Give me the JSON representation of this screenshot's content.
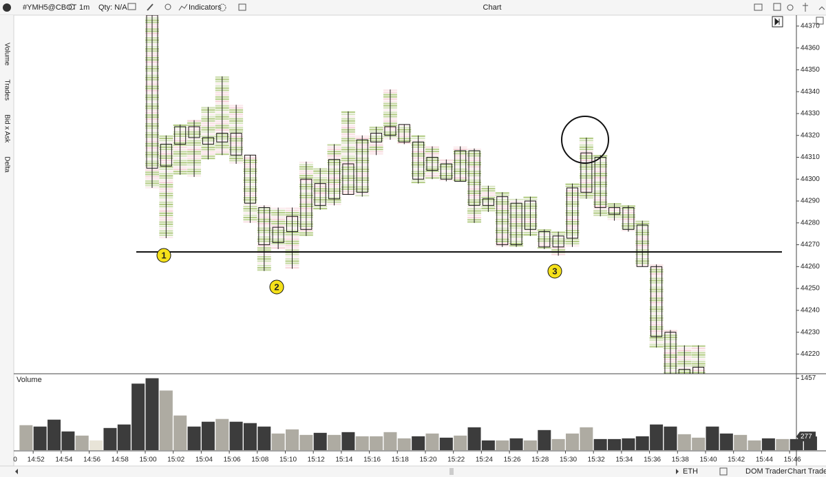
{
  "toolbar": {
    "symbol": "#YMH5@CBOT",
    "interval": "1m",
    "qty": "Qty: N/A",
    "indicators": "Indicators",
    "window_title": "Chart"
  },
  "sidebar": [
    "Volume",
    "Trades",
    "Bid x Ask",
    "Delta"
  ],
  "markers": [
    "1",
    "2",
    "3"
  ],
  "footer": {
    "session": "ETH",
    "dom_trader": "DOM Trader",
    "chart_trader": "Chart Trader"
  },
  "chart_data": [
    {
      "type": "candlestick",
      "ylim": [
        44211,
        44375
      ],
      "yticks": [
        44220,
        44230,
        44240,
        44250,
        44260,
        44270,
        44280,
        44290,
        44300,
        44310,
        44320,
        44330,
        44340,
        44350,
        44360,
        44370
      ],
      "x_origin_label": "0",
      "xticks": [
        "14:52",
        "14:54",
        "14:56",
        "14:58",
        "15:00",
        "15:02",
        "15:04",
        "15:06",
        "15:08",
        "15:10",
        "15:12",
        "15:14",
        "15:16",
        "15:18",
        "15:20",
        "15:22",
        "15:24",
        "15:26",
        "15:28",
        "15:30",
        "15:32",
        "15:34",
        "15:36",
        "15:38",
        "15:40",
        "15:42",
        "15:44",
        "15:46"
      ],
      "x": [
        "15:00",
        "15:01",
        "15:02",
        "15:03",
        "15:04",
        "15:05",
        "15:06",
        "15:07",
        "15:08",
        "15:09",
        "15:10",
        "15:11",
        "15:12",
        "15:13",
        "15:14",
        "15:15",
        "15:16",
        "15:17",
        "15:18",
        "15:19",
        "15:20",
        "15:21",
        "15:22",
        "15:23",
        "15:24",
        "15:25",
        "15:26",
        "15:27",
        "15:28",
        "15:29",
        "15:30",
        "15:31",
        "15:32",
        "15:33",
        "15:34",
        "15:35",
        "15:36",
        "15:37",
        "15:38",
        "15:39"
      ],
      "open": [
        44375,
        44306,
        44316,
        44324,
        44319,
        44317,
        44321,
        44311,
        44287,
        44271,
        44276,
        44277,
        44288,
        44291,
        44293,
        44294,
        44317,
        44320,
        44325,
        44317,
        44304,
        44307,
        44299,
        44313,
        44288,
        44292,
        44270,
        44290,
        44276,
        44269,
        44273,
        44294,
        44310,
        44287,
        44287,
        44279,
        44260,
        44230,
        44213,
        44214
      ],
      "high": [
        44375,
        44320,
        44325,
        44327,
        44333,
        44347,
        44334,
        44311,
        44288,
        44287,
        44287,
        44308,
        44305,
        44316,
        44331,
        44320,
        44324,
        44341,
        44325,
        44320,
        44315,
        44309,
        44315,
        44314,
        44297,
        44294,
        44291,
        44292,
        44277,
        44276,
        44298,
        44319,
        44311,
        44289,
        44288,
        44281,
        44261,
        44231,
        44224,
        44224
      ],
      "low": [
        44296,
        44273,
        44302,
        44301,
        44309,
        44311,
        44307,
        44280,
        44258,
        44268,
        44259,
        44274,
        44286,
        44288,
        44293,
        44292,
        44311,
        44318,
        44316,
        44298,
        44300,
        44299,
        44299,
        44280,
        44285,
        44269,
        44269,
        44274,
        44268,
        44265,
        44269,
        44291,
        44283,
        44281,
        44276,
        44260,
        44223,
        44211,
        44205,
        44205
      ],
      "close": [
        44305,
        44316,
        44324,
        44319,
        44316,
        44321,
        44311,
        44289,
        44270,
        44278,
        44283,
        44300,
        44298,
        44309,
        44307,
        44318,
        44321,
        44324,
        44317,
        44300,
        44310,
        44300,
        44313,
        44288,
        44291,
        44270,
        44289,
        44277,
        44269,
        44274,
        44296,
        44312,
        44287,
        44284,
        44277,
        44260,
        44228,
        44211,
        44205,
        44210
      ],
      "up_color": "#7fa832",
      "down_color": "#d9475a",
      "body_color": "#1a1a1a"
    },
    {
      "type": "bar",
      "title": "Volume",
      "ylim": [
        0,
        1520
      ],
      "yticks": [
        1457
      ],
      "x": [
        "14:51",
        "14:52",
        "14:53",
        "14:54",
        "14:55",
        "14:56",
        "14:57",
        "14:58",
        "14:59",
        "15:00",
        "15:01",
        "15:02",
        "15:03",
        "15:04",
        "15:05",
        "15:06",
        "15:07",
        "15:08",
        "15:09",
        "15:10",
        "15:11",
        "15:12",
        "15:13",
        "15:14",
        "15:15",
        "15:16",
        "15:17",
        "15:18",
        "15:19",
        "15:20",
        "15:21",
        "15:22",
        "15:23",
        "15:24",
        "15:25",
        "15:26",
        "15:27",
        "15:28",
        "15:29",
        "15:30",
        "15:31",
        "15:32",
        "15:33",
        "15:34",
        "15:35",
        "15:36",
        "15:37",
        "15:38",
        "15:39",
        "15:40",
        "15:41",
        "15:42",
        "15:43",
        "15:44",
        "15:45",
        "15:46",
        "15:47"
      ],
      "values": [
        506,
        478,
        618,
        379,
        295,
        197,
        449,
        520,
        1348,
        1457,
        1208,
        702,
        478,
        576,
        632,
        576,
        548,
        478,
        337,
        421,
        309,
        351,
        309,
        365,
        281,
        281,
        365,
        239,
        281,
        337,
        253,
        295,
        463,
        197,
        197,
        239,
        197,
        407,
        225,
        337,
        463,
        225,
        225,
        239,
        281,
        520,
        478,
        323,
        253,
        478,
        337,
        309,
        197,
        239,
        225,
        225,
        277
      ],
      "colors": [
        "#aeaba2",
        "#3c3c3c",
        "#3c3c3c",
        "#3c3c3c",
        "#aeaba2",
        "#e8e4d8",
        "#3c3c3c",
        "#3c3c3c",
        "#3c3c3c",
        "#3c3c3c",
        "#aeaba2",
        "#aeaba2",
        "#3c3c3c",
        "#3c3c3c",
        "#aeaba2",
        "#3c3c3c",
        "#3c3c3c",
        "#3c3c3c",
        "#aeaba2",
        "#aeaba2",
        "#aeaba2",
        "#3c3c3c",
        "#aeaba2",
        "#3c3c3c",
        "#aeaba2",
        "#aeaba2",
        "#aeaba2",
        "#aeaba2",
        "#3c3c3c",
        "#aeaba2",
        "#3c3c3c",
        "#aeaba2",
        "#3c3c3c",
        "#3c3c3c",
        "#aeaba2",
        "#3c3c3c",
        "#aeaba2",
        "#3c3c3c",
        "#aeaba2",
        "#aeaba2",
        "#aeaba2",
        "#3c3c3c",
        "#3c3c3c",
        "#3c3c3c",
        "#3c3c3c",
        "#3c3c3c",
        "#3c3c3c",
        "#aeaba2",
        "#aeaba2",
        "#3c3c3c",
        "#3c3c3c",
        "#aeaba2",
        "#aeaba2",
        "#3c3c3c",
        "#aeaba2",
        "#3c3c3c",
        "#3c3c3c"
      ]
    }
  ]
}
